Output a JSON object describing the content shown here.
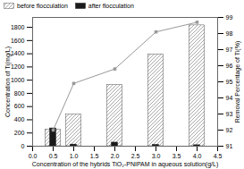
{
  "chart_data": {
    "type": "bar",
    "xlabel": "Concentration of the hybrids TiO₂-PNIPAM in aqueous solution(g/L)",
    "ylabel": "Concentration of Ti(mg/L)",
    "y2label": "Removal Percentage of Ti(%)",
    "x": [
      0.5,
      1.0,
      2.0,
      3.0,
      4.0
    ],
    "series": [
      {
        "name": "before flocculation",
        "color": "white",
        "values": [
          250,
          480,
          930,
          1390,
          1830
        ]
      },
      {
        "name": "after flocculation",
        "color": "#1a1a1a",
        "values": [
          270,
          25,
          55,
          20,
          15
        ]
      },
      {
        "type": "line",
        "axis": "y2",
        "color": "#999999",
        "marker": "square",
        "values": [
          92.0,
          94.9,
          95.8,
          98.1,
          98.7
        ]
      }
    ],
    "xlim": [
      0.0,
      4.5
    ],
    "xticks": [
      {
        "value": 0,
        "label": "0.0"
      },
      0.5,
      {
        "value": 1,
        "label": "1.0"
      },
      1.5,
      {
        "value": 2,
        "label": "2.0"
      },
      2.5,
      {
        "value": 3,
        "label": "3.0"
      },
      3.5,
      {
        "value": 4,
        "label": "4.0"
      },
      4.5
    ],
    "ylim": [
      0,
      1950
    ],
    "yticks": [
      0,
      200,
      400,
      600,
      800,
      1000,
      1200,
      1400,
      1600,
      1800
    ],
    "y2lim": [
      91,
      99
    ],
    "y2ticks": [
      91,
      92,
      93,
      94,
      95,
      96,
      97,
      98,
      99
    ],
    "legend": "upper left",
    "grid": false
  }
}
